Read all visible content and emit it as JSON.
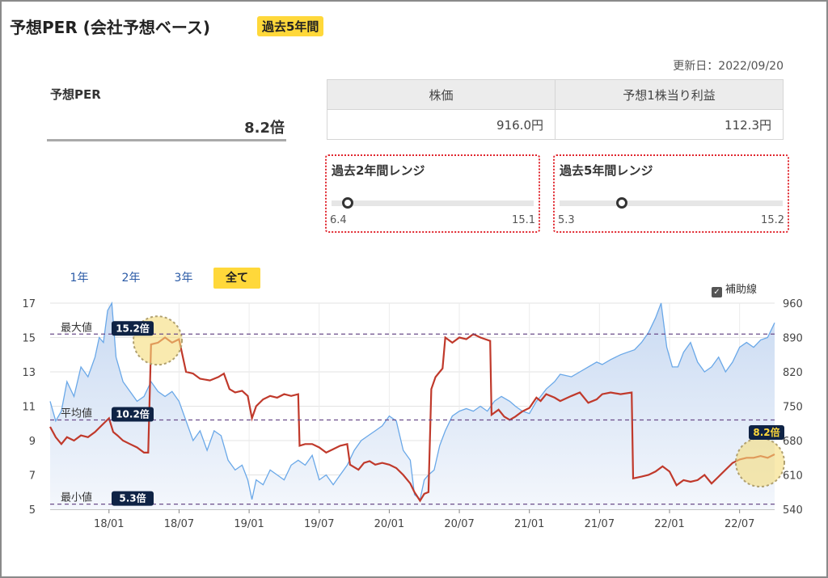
{
  "header": {
    "title": "予想PER (会社予想ベース)",
    "badge": "過去5年間"
  },
  "updated": "更新日：2022/09/20",
  "per": {
    "label": "予想PER",
    "value": "8.2倍"
  },
  "price_table": {
    "headers": [
      "株価",
      "予想1株当り利益"
    ],
    "values": [
      "916.0円",
      "112.3円"
    ]
  },
  "ranges": [
    {
      "title": "過去2年間レンジ",
      "low": "6.4",
      "high": "15.1",
      "position": 0.08
    },
    {
      "title": "過去5年間レンジ",
      "low": "5.3",
      "high": "15.2",
      "position": 0.28
    }
  ],
  "period_tabs": [
    "1年",
    "2年",
    "3年",
    "全て"
  ],
  "active_tab": "全て",
  "aux_line": {
    "label": "補助線",
    "checked": true
  },
  "colors": {
    "accent": "#ffd83a",
    "per_line": "#c0392b",
    "price_line": "#6aa8e8",
    "price_fill": "#c9daf2",
    "tag": "#0f2345",
    "ref_line": "#6b4c8a"
  },
  "chart_data": {
    "type": "line",
    "x_ticks": [
      "18/01",
      "18/07",
      "19/01",
      "19/07",
      "20/01",
      "20/07",
      "21/01",
      "21/07",
      "22/01",
      "22/07"
    ],
    "y_left": {
      "ticks": [
        5,
        7,
        9,
        11,
        13,
        15,
        17
      ],
      "range": [
        5,
        17
      ]
    },
    "y_right": {
      "ticks": [
        540,
        610,
        680,
        750,
        820,
        890,
        960
      ],
      "range": [
        540,
        960
      ]
    },
    "x_range": [
      2017.58,
      2022.75
    ],
    "reference_lines": [
      {
        "label": "最大値",
        "value": 15.2,
        "tag": "15.2倍"
      },
      {
        "label": "平均値",
        "value": 10.2,
        "tag": "10.2倍"
      },
      {
        "label": "最小値",
        "value": 5.3,
        "tag": "5.3倍"
      }
    ],
    "current_tag": "8.2倍",
    "series": [
      {
        "axis": "left",
        "points": [
          [
            2017.58,
            9.8
          ],
          [
            2017.62,
            9.2
          ],
          [
            2017.66,
            8.8
          ],
          [
            2017.7,
            9.2
          ],
          [
            2017.75,
            9.0
          ],
          [
            2017.8,
            9.3
          ],
          [
            2017.85,
            9.2
          ],
          [
            2017.9,
            9.5
          ],
          [
            2017.95,
            9.9
          ],
          [
            2018.0,
            10.3
          ],
          [
            2018.03,
            9.5
          ],
          [
            2018.06,
            9.3
          ],
          [
            2018.1,
            9.0
          ],
          [
            2018.15,
            8.8
          ],
          [
            2018.2,
            8.6
          ],
          [
            2018.25,
            8.3
          ],
          [
            2018.28,
            8.3
          ],
          [
            2018.3,
            14.6
          ],
          [
            2018.35,
            14.7
          ],
          [
            2018.4,
            15.0
          ],
          [
            2018.45,
            14.7
          ],
          [
            2018.5,
            14.9
          ],
          [
            2018.55,
            13.0
          ],
          [
            2018.6,
            12.9
          ],
          [
            2018.65,
            12.6
          ],
          [
            2018.72,
            12.5
          ],
          [
            2018.78,
            12.7
          ],
          [
            2018.82,
            12.9
          ],
          [
            2018.86,
            12.0
          ],
          [
            2018.9,
            11.8
          ],
          [
            2018.95,
            11.9
          ],
          [
            2018.99,
            11.6
          ],
          [
            2019.02,
            10.3
          ],
          [
            2019.05,
            11.0
          ],
          [
            2019.1,
            11.4
          ],
          [
            2019.15,
            11.6
          ],
          [
            2019.2,
            11.5
          ],
          [
            2019.25,
            11.7
          ],
          [
            2019.3,
            11.6
          ],
          [
            2019.35,
            11.7
          ],
          [
            2019.36,
            8.7
          ],
          [
            2019.4,
            8.8
          ],
          [
            2019.45,
            8.8
          ],
          [
            2019.5,
            8.6
          ],
          [
            2019.55,
            8.3
          ],
          [
            2019.6,
            8.5
          ],
          [
            2019.65,
            8.7
          ],
          [
            2019.7,
            8.8
          ],
          [
            2019.72,
            7.6
          ],
          [
            2019.78,
            7.3
          ],
          [
            2019.82,
            7.7
          ],
          [
            2019.86,
            7.8
          ],
          [
            2019.9,
            7.6
          ],
          [
            2019.95,
            7.7
          ],
          [
            2020.0,
            7.6
          ],
          [
            2020.05,
            7.4
          ],
          [
            2020.1,
            7.0
          ],
          [
            2020.15,
            6.5
          ],
          [
            2020.18,
            6.0
          ],
          [
            2020.22,
            5.5
          ],
          [
            2020.25,
            5.9
          ],
          [
            2020.28,
            6.0
          ],
          [
            2020.3,
            12.0
          ],
          [
            2020.33,
            12.7
          ],
          [
            2020.36,
            13.0
          ],
          [
            2020.38,
            13.2
          ],
          [
            2020.4,
            15.0
          ],
          [
            2020.45,
            14.7
          ],
          [
            2020.5,
            15.0
          ],
          [
            2020.55,
            14.9
          ],
          [
            2020.6,
            15.2
          ],
          [
            2020.65,
            15.0
          ],
          [
            2020.72,
            14.8
          ],
          [
            2020.73,
            10.5
          ],
          [
            2020.78,
            10.8
          ],
          [
            2020.82,
            10.4
          ],
          [
            2020.86,
            10.2
          ],
          [
            2020.9,
            10.4
          ],
          [
            2020.95,
            10.7
          ],
          [
            2021.0,
            10.9
          ],
          [
            2021.05,
            11.5
          ],
          [
            2021.08,
            11.3
          ],
          [
            2021.12,
            11.7
          ],
          [
            2021.18,
            11.5
          ],
          [
            2021.22,
            11.3
          ],
          [
            2021.3,
            11.6
          ],
          [
            2021.36,
            11.8
          ],
          [
            2021.42,
            11.2
          ],
          [
            2021.48,
            11.4
          ],
          [
            2021.52,
            11.7
          ],
          [
            2021.58,
            11.8
          ],
          [
            2021.65,
            11.7
          ],
          [
            2021.73,
            11.8
          ],
          [
            2021.74,
            6.8
          ],
          [
            2021.8,
            6.9
          ],
          [
            2021.85,
            7.0
          ],
          [
            2021.9,
            7.2
          ],
          [
            2021.95,
            7.5
          ],
          [
            2022.0,
            7.2
          ],
          [
            2022.05,
            6.4
          ],
          [
            2022.1,
            6.7
          ],
          [
            2022.15,
            6.6
          ],
          [
            2022.2,
            6.7
          ],
          [
            2022.25,
            7.0
          ],
          [
            2022.3,
            6.5
          ],
          [
            2022.35,
            6.9
          ],
          [
            2022.4,
            7.3
          ],
          [
            2022.45,
            7.7
          ],
          [
            2022.5,
            7.9
          ],
          [
            2022.55,
            8.0
          ],
          [
            2022.6,
            8.0
          ],
          [
            2022.65,
            8.1
          ],
          [
            2022.7,
            8.0
          ],
          [
            2022.75,
            8.2
          ]
        ]
      },
      {
        "axis": "right",
        "points": [
          [
            2017.58,
            760
          ],
          [
            2017.62,
            720
          ],
          [
            2017.66,
            740
          ],
          [
            2017.7,
            800
          ],
          [
            2017.75,
            770
          ],
          [
            2017.8,
            830
          ],
          [
            2017.85,
            810
          ],
          [
            2017.9,
            850
          ],
          [
            2017.93,
            890
          ],
          [
            2017.96,
            880
          ],
          [
            2017.99,
            945
          ],
          [
            2018.02,
            960
          ],
          [
            2018.05,
            850
          ],
          [
            2018.1,
            800
          ],
          [
            2018.15,
            780
          ],
          [
            2018.2,
            760
          ],
          [
            2018.25,
            770
          ],
          [
            2018.3,
            800
          ],
          [
            2018.35,
            780
          ],
          [
            2018.4,
            770
          ],
          [
            2018.45,
            780
          ],
          [
            2018.5,
            760
          ],
          [
            2018.55,
            720
          ],
          [
            2018.6,
            680
          ],
          [
            2018.65,
            700
          ],
          [
            2018.7,
            660
          ],
          [
            2018.75,
            700
          ],
          [
            2018.8,
            690
          ],
          [
            2018.85,
            640
          ],
          [
            2018.9,
            620
          ],
          [
            2018.95,
            630
          ],
          [
            2018.99,
            600
          ],
          [
            2019.02,
            560
          ],
          [
            2019.05,
            600
          ],
          [
            2019.1,
            590
          ],
          [
            2019.15,
            620
          ],
          [
            2019.2,
            610
          ],
          [
            2019.25,
            600
          ],
          [
            2019.3,
            630
          ],
          [
            2019.35,
            640
          ],
          [
            2019.4,
            630
          ],
          [
            2019.45,
            650
          ],
          [
            2019.5,
            600
          ],
          [
            2019.55,
            610
          ],
          [
            2019.6,
            590
          ],
          [
            2019.65,
            610
          ],
          [
            2019.7,
            630
          ],
          [
            2019.75,
            660
          ],
          [
            2019.8,
            680
          ],
          [
            2019.85,
            690
          ],
          [
            2019.9,
            700
          ],
          [
            2019.95,
            710
          ],
          [
            2020.0,
            730
          ],
          [
            2020.05,
            720
          ],
          [
            2020.1,
            660
          ],
          [
            2020.15,
            640
          ],
          [
            2020.18,
            570
          ],
          [
            2020.22,
            560
          ],
          [
            2020.25,
            600
          ],
          [
            2020.28,
            610
          ],
          [
            2020.32,
            620
          ],
          [
            2020.36,
            670
          ],
          [
            2020.4,
            700
          ],
          [
            2020.45,
            730
          ],
          [
            2020.5,
            740
          ],
          [
            2020.55,
            745
          ],
          [
            2020.6,
            740
          ],
          [
            2020.65,
            750
          ],
          [
            2020.7,
            740
          ],
          [
            2020.75,
            760
          ],
          [
            2020.8,
            770
          ],
          [
            2020.86,
            760
          ],
          [
            2020.9,
            750
          ],
          [
            2020.95,
            740
          ],
          [
            2021.0,
            735
          ],
          [
            2021.05,
            760
          ],
          [
            2021.08,
            770
          ],
          [
            2021.12,
            785
          ],
          [
            2021.18,
            800
          ],
          [
            2021.22,
            815
          ],
          [
            2021.3,
            810
          ],
          [
            2021.36,
            820
          ],
          [
            2021.42,
            830
          ],
          [
            2021.48,
            840
          ],
          [
            2021.52,
            835
          ],
          [
            2021.58,
            845
          ],
          [
            2021.65,
            855
          ],
          [
            2021.7,
            860
          ],
          [
            2021.75,
            865
          ],
          [
            2021.8,
            880
          ],
          [
            2021.85,
            900
          ],
          [
            2021.9,
            930
          ],
          [
            2021.94,
            960
          ],
          [
            2021.98,
            870
          ],
          [
            2022.02,
            830
          ],
          [
            2022.06,
            830
          ],
          [
            2022.1,
            860
          ],
          [
            2022.15,
            880
          ],
          [
            2022.2,
            840
          ],
          [
            2022.25,
            820
          ],
          [
            2022.3,
            830
          ],
          [
            2022.35,
            850
          ],
          [
            2022.4,
            820
          ],
          [
            2022.45,
            840
          ],
          [
            2022.5,
            870
          ],
          [
            2022.55,
            880
          ],
          [
            2022.6,
            870
          ],
          [
            2022.65,
            885
          ],
          [
            2022.7,
            890
          ],
          [
            2022.75,
            920
          ]
        ]
      }
    ]
  }
}
